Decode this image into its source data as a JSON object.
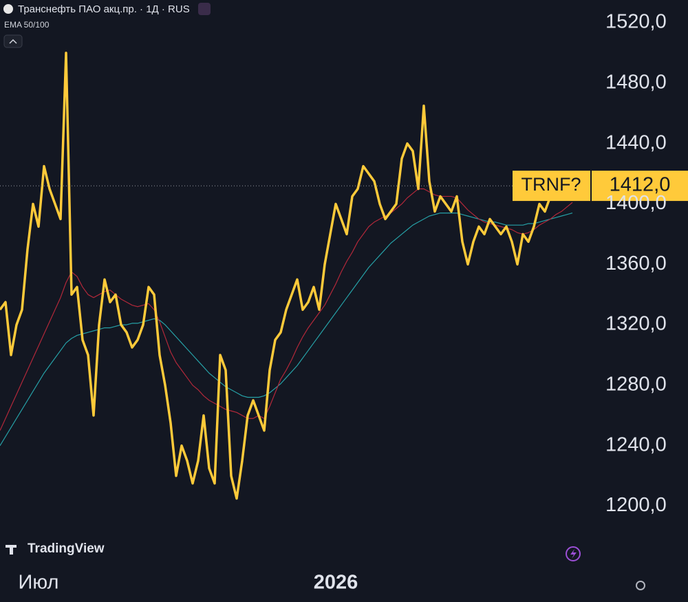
{
  "header": {
    "title": "Транснефть ПАО акц.пр. · 1Д · RUS",
    "indicator": "EMA 50/100",
    "brand": "TradingView"
  },
  "chart_data": {
    "type": "line",
    "categories": [
      null,
      null,
      null,
      null,
      null,
      null,
      null,
      "Июл",
      null,
      null,
      null,
      null,
      null,
      null,
      null,
      null,
      null,
      null,
      null,
      null,
      null,
      null,
      null,
      null,
      null,
      null,
      null,
      null,
      null,
      null,
      null,
      null,
      null,
      null,
      null,
      null,
      null,
      null,
      null,
      null,
      null,
      null,
      null,
      null,
      null,
      null,
      null,
      null,
      null,
      null,
      null,
      null,
      null,
      null,
      null,
      null,
      null,
      null,
      null,
      null,
      null,
      "2026",
      null,
      null,
      null,
      null,
      null,
      null,
      null,
      null,
      null,
      null,
      null,
      null,
      null,
      null,
      null,
      null,
      null,
      null,
      null,
      null,
      null,
      null,
      null,
      null,
      null,
      null,
      null,
      null,
      null,
      null,
      null,
      null,
      null,
      null,
      null,
      null,
      null,
      null,
      null,
      null,
      null,
      null,
      null
    ],
    "series": [
      {
        "name": "TRNF?",
        "color": "#ffca3a",
        "values": [
          1330,
          1335,
          1300,
          1320,
          1330,
          1370,
          1400,
          1385,
          1425,
          1410,
          1400,
          1390,
          1500,
          1340,
          1345,
          1310,
          1300,
          1260,
          1320,
          1350,
          1335,
          1340,
          1320,
          1315,
          1305,
          1310,
          1320,
          1345,
          1340,
          1300,
          1280,
          1255,
          1220,
          1240,
          1230,
          1215,
          1230,
          1260,
          1225,
          1215,
          1300,
          1290,
          1220,
          1205,
          1230,
          1260,
          1270,
          1260,
          1250,
          1290,
          1310,
          1315,
          1330,
          1340,
          1350,
          1330,
          1335,
          1345,
          1330,
          1360,
          1380,
          1400,
          1390,
          1380,
          1405,
          1410,
          1425,
          1420,
          1415,
          1400,
          1390,
          1395,
          1400,
          1430,
          1440,
          1435,
          1410,
          1465,
          1415,
          1395,
          1405,
          1400,
          1395,
          1405,
          1375,
          1360,
          1375,
          1385,
          1380,
          1390,
          1385,
          1380,
          1385,
          1375,
          1360,
          1380,
          1375,
          1385,
          1400,
          1395,
          1405,
          1410,
          1415,
          1420,
          1412
        ],
        "last_label": "1412,0"
      },
      {
        "color": "#b2283a",
        "values": [
          1250,
          1258,
          1266,
          1274,
          1282,
          1290,
          1298,
          1306,
          1314,
          1322,
          1330,
          1338,
          1348,
          1355,
          1352,
          1345,
          1340,
          1338,
          1340,
          1342,
          1343,
          1340,
          1337,
          1335,
          1333,
          1332,
          1333,
          1334,
          1330,
          1322,
          1312,
          1302,
          1295,
          1290,
          1285,
          1280,
          1277,
          1273,
          1270,
          1268,
          1266,
          1264,
          1263,
          1262,
          1260,
          1258,
          1258,
          1260,
          1258,
          1266,
          1275,
          1284,
          1290,
          1297,
          1305,
          1312,
          1318,
          1323,
          1328,
          1333,
          1340,
          1347,
          1355,
          1362,
          1368,
          1375,
          1380,
          1385,
          1388,
          1390,
          1392,
          1394,
          1397,
          1400,
          1404,
          1407,
          1410,
          1410,
          1408,
          1406,
          1405,
          1405,
          1405,
          1404,
          1400,
          1396,
          1393,
          1390,
          1388,
          1387,
          1386,
          1385,
          1384,
          1383,
          1381,
          1380,
          1381,
          1383,
          1386,
          1388,
          1390,
          1393,
          1395,
          1398,
          1401
        ]
      },
      {
        "color": "#26a0a6",
        "values": [
          1240,
          1246,
          1252,
          1258,
          1264,
          1270,
          1276,
          1282,
          1288,
          1293,
          1298,
          1303,
          1308,
          1311,
          1313,
          1314,
          1315,
          1316,
          1317,
          1318,
          1318,
          1319,
          1320,
          1320,
          1321,
          1321,
          1322,
          1323,
          1324,
          1323,
          1320,
          1316,
          1312,
          1308,
          1304,
          1300,
          1296,
          1292,
          1288,
          1285,
          1282,
          1279,
          1277,
          1275,
          1273,
          1272,
          1272,
          1272,
          1273,
          1275,
          1278,
          1281,
          1285,
          1289,
          1293,
          1298,
          1303,
          1308,
          1313,
          1318,
          1323,
          1328,
          1333,
          1338,
          1343,
          1348,
          1353,
          1358,
          1362,
          1366,
          1370,
          1374,
          1377,
          1380,
          1383,
          1386,
          1388,
          1390,
          1392,
          1393,
          1394,
          1394,
          1394,
          1394,
          1393,
          1392,
          1391,
          1390,
          1389,
          1388,
          1388,
          1387,
          1386,
          1386,
          1386,
          1386,
          1387,
          1387,
          1388,
          1389,
          1390,
          1391,
          1392,
          1393,
          1394
        ]
      }
    ],
    "ylim": [
      1157,
      1535
    ],
    "yticks": [
      {
        "value": 1520,
        "label": "1520,0"
      },
      {
        "value": 1480,
        "label": "1480,0"
      },
      {
        "value": 1440,
        "label": "1440,0"
      },
      {
        "value": 1400,
        "label": "1400,0"
      },
      {
        "value": 1360,
        "label": "1360,0"
      },
      {
        "value": 1320,
        "label": "1320,0"
      },
      {
        "value": 1280,
        "label": "1280,0"
      },
      {
        "value": 1240,
        "label": "1240,0"
      },
      {
        "value": 1200,
        "label": "1200,0"
      }
    ],
    "grid": false
  }
}
